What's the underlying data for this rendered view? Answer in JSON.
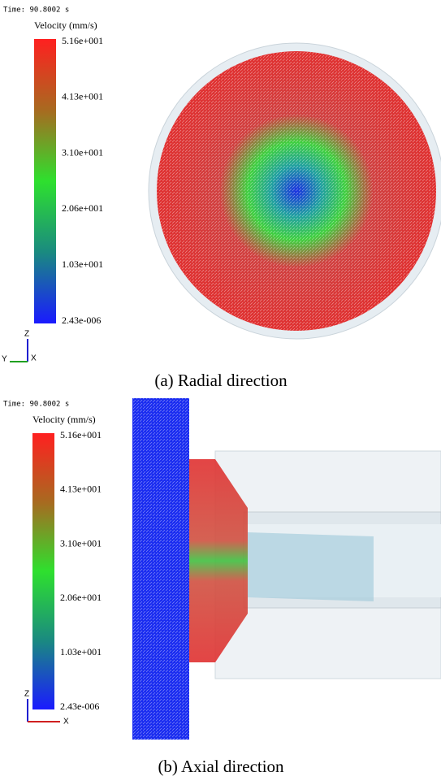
{
  "panels": [
    {
      "time": "Time: 90.8002 s",
      "legend_title": "Velocity (mm/s)",
      "ticks": [
        "5.16e+001",
        "4.13e+001",
        "3.10e+001",
        "2.06e+001",
        "1.03e+001",
        "2.43e-006"
      ],
      "axes": [
        "Z",
        "Y",
        "X"
      ],
      "caption": "(a) Radial direction"
    },
    {
      "time": "Time: 90.8002 s",
      "legend_title": "Velocity (mm/s)",
      "ticks": [
        "5.16e+001",
        "4.13e+001",
        "3.10e+001",
        "2.06e+001",
        "1.03e+001",
        "2.43e-006"
      ],
      "axes": [
        "Z",
        "X"
      ],
      "caption": "(b) Axial direction"
    }
  ]
}
